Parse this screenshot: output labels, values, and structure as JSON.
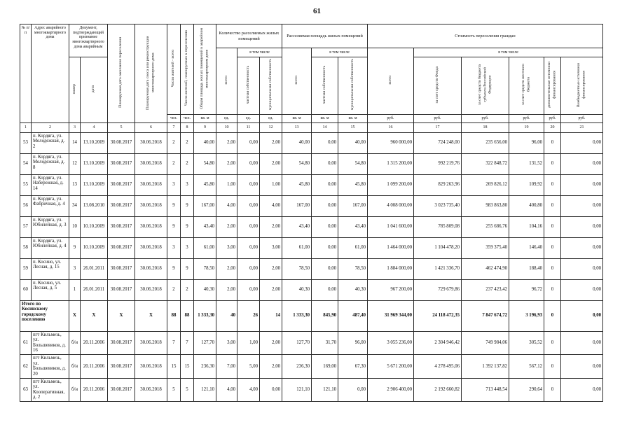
{
  "page": {
    "number": "61"
  },
  "table": {
    "header": {
      "num": "№ п/п",
      "address": "Адрес аварийного многоквартирного дома",
      "doc_group": "Документ, подтверждающий признание многоквартирного дома аварийным",
      "doc_number": "номер",
      "doc_date": "дата",
      "plan_resettlement_date": "Планируемая дата окончания переселения",
      "plan_demolition_date": "Планируемая дата сноса или реконструкции многоквартирного дома",
      "residents_total": "Число жителей - всего",
      "residents_to_resettle": "Число жителей, планируемых к переселению",
      "total_dwelling_area": "Общая площадь жилых помещений в аварийном многоквартирном доме",
      "count_group": "Количество расселяемых жилых помещений",
      "area_group": "Расселяемая площадь жилых помещений",
      "cost_group": "Стоимость переселения граждан",
      "including": "в том числе",
      "total": "всего",
      "private_property": "частная собственность",
      "municipal_property": "муниципальная собственность",
      "cost_fund": "за счет средств Фонда",
      "cost_region_budget": "за счет средств бюджета субъекта Российской Федерации",
      "cost_local_budget": "за счет средств местного бюджета",
      "cost_additional": "дополнительные источники финансирования",
      "cost_offbudget": "Внебюджетные источники финансирования",
      "unit_people": "чел.",
      "unit_sqm": "кв. м",
      "unit_item": "ед.",
      "unit_rub": "руб.",
      "col_numbers": [
        "1",
        "2",
        "3",
        "4",
        "5",
        "6",
        "7",
        "8",
        "9",
        "10",
        "11",
        "12",
        "13",
        "14",
        "15",
        "16",
        "17",
        "18",
        "19",
        "20",
        "21"
      ]
    },
    "rows": [
      {
        "type": "data",
        "cells": [
          "53",
          "п. Кордяга, ул. Молодежная, д. 2",
          "14",
          "13.10.2009",
          "30.08.2017",
          "30.06.2018",
          "2",
          "2",
          "40,00",
          "2,00",
          "0,00",
          "2,00",
          "40,00",
          "0,00",
          "40,00",
          "960 000,00",
          "724 248,00",
          "235 656,00",
          "96,00",
          "0",
          "0,00"
        ]
      },
      {
        "type": "data",
        "cells": [
          "54",
          "п. Кордяга, ул. Молодежная, д. 8",
          "12",
          "13.10.2009",
          "30.08.2017",
          "30.06.2018",
          "2",
          "2",
          "54,80",
          "2,00",
          "0,00",
          "2,00",
          "54,80",
          "0,00",
          "54,80",
          "1 315 200,00",
          "992 219,76",
          "322 848,72",
          "131,52",
          "0",
          "0,00"
        ]
      },
      {
        "type": "data",
        "cells": [
          "55",
          "п. Кордяга, ул. Набережная, д. 14",
          "13",
          "13.10.2009",
          "30.08.2017",
          "30.06.2018",
          "3",
          "3",
          "45,80",
          "1,00",
          "0,00",
          "1,00",
          "45,80",
          "0,00",
          "45,80",
          "1 099 200,00",
          "829 263,96",
          "269 826,12",
          "109,92",
          "0",
          "0,00"
        ]
      },
      {
        "type": "data",
        "cells": [
          "56",
          "п. Кордяга, ул. Фабричная, д. 4",
          "34",
          "13.08.2010",
          "30.08.2017",
          "30.06.2018",
          "9",
          "9",
          "167,00",
          "4,00",
          "0,00",
          "4,00",
          "167,00",
          "0,00",
          "167,00",
          "4 008 000,00",
          "3 023 735,40",
          "983 863,80",
          "400,80",
          "0",
          "0,00"
        ]
      },
      {
        "type": "data",
        "cells": [
          "57",
          "п. Кордяга, ул. Юбилейная, д. 3",
          "10",
          "10.10.2009",
          "30.08.2017",
          "30.06.2018",
          "9",
          "9",
          "43,40",
          "2,00",
          "0,00",
          "2,00",
          "43,40",
          "0,00",
          "43,40",
          "1 041 600,00",
          "785 809,08",
          "255 686,76",
          "104,16",
          "0",
          "0,00"
        ]
      },
      {
        "type": "data",
        "cells": [
          "58",
          "п. Кордяга, ул. Юбилейная, д. 4",
          "9",
          "10.10.2009",
          "30.08.2017",
          "30.06.2018",
          "3",
          "3",
          "61,00",
          "3,00",
          "0,00",
          "3,00",
          "61,00",
          "0,00",
          "61,00",
          "1 464 000,00",
          "1 104 478,20",
          "359 375,40",
          "146,40",
          "0",
          "0,00"
        ]
      },
      {
        "type": "data",
        "cells": [
          "59",
          "п. Косино, ул. Лесная, д. 15",
          "3",
          "26.01.2011",
          "30.08.2017",
          "30.06.2018",
          "9",
          "9",
          "78,50",
          "2,00",
          "0,00",
          "2,00",
          "78,50",
          "0,00",
          "78,50",
          "1 884 000,00",
          "1 421 336,70",
          "462 474,90",
          "188,40",
          "0",
          "0,00"
        ]
      },
      {
        "type": "data",
        "cells": [
          "60",
          "п. Косино, ул. Лесная, д. 5",
          "1",
          "26.01.2011",
          "30.08.2017",
          "30.06.2018",
          "2",
          "2",
          "40,30",
          "2,00",
          "0,00",
          "2,00",
          "40,30",
          "0,00",
          "40,30",
          "967 200,00",
          "729 679,86",
          "237 423,42",
          "96,72",
          "0",
          "0,00"
        ]
      },
      {
        "type": "summary",
        "label": "Итого по Косинскому городскому поселению",
        "cells": [
          "X",
          "X",
          "X",
          "X",
          "88",
          "88",
          "1 333,30",
          "40",
          "26",
          "14",
          "1 333,30",
          "845,90",
          "487,40",
          "31 969 344,00",
          "24 118 472,35",
          "7 847 674,72",
          "3 196,93",
          "0",
          "0,00"
        ]
      },
      {
        "type": "data",
        "cells": [
          "61",
          "пгт Кильмезь, ул. Большевиков, д. 16",
          "б/н",
          "20.11.2006",
          "30.08.2017",
          "30.06.2018",
          "7",
          "7",
          "127,70",
          "3,00",
          "1,00",
          "2,00",
          "127,70",
          "31,70",
          "96,00",
          "3 055 236,00",
          "2 304 946,42",
          "749 984,06",
          "305,52",
          "0",
          "0,00"
        ]
      },
      {
        "type": "data",
        "cells": [
          "62",
          "пгт Кильмезь, ул. Большевиков, д. 20",
          "б/н",
          "20.11.2006",
          "30.08.2017",
          "30.06.2018",
          "15",
          "15",
          "236,30",
          "7,00",
          "5,00",
          "2,00",
          "236,30",
          "169,00",
          "67,30",
          "5 671 200,00",
          "4 278 495,06",
          "1 392 137,82",
          "567,12",
          "0",
          "0,00"
        ]
      },
      {
        "type": "data",
        "cells": [
          "63",
          "пгт Кильмезь, ул. Кооперативная, д. 2",
          "б/н",
          "20.11.2006",
          "30.08.2017",
          "30.06.2018",
          "5",
          "5",
          "121,10",
          "4,00",
          "4,00",
          "0,00",
          "121,10",
          "121,10",
          "0,00",
          "2 906 400,00",
          "2 192 660,82",
          "713 448,54",
          "290,64",
          "0",
          "0,00"
        ]
      }
    ]
  }
}
